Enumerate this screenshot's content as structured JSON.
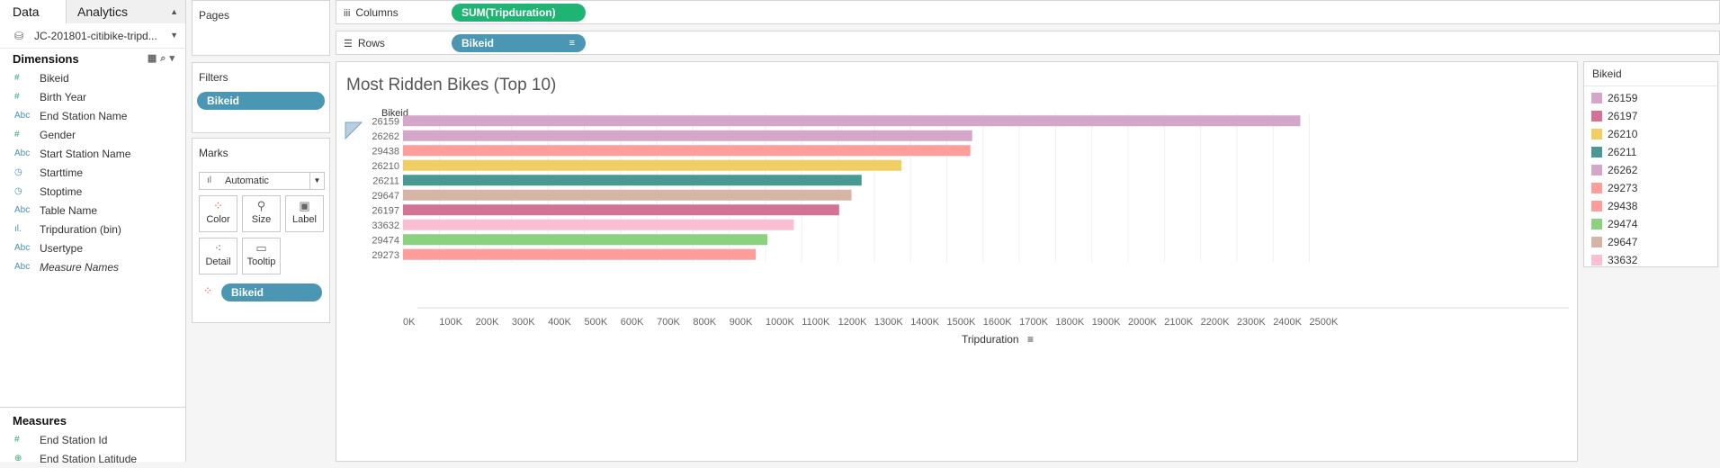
{
  "data_pane": {
    "tabs": [
      "Data",
      "Analytics"
    ],
    "datasource": "JC-201801-citibike-tripd...",
    "dimensions_title": "Dimensions",
    "dimensions": [
      {
        "icon": "#",
        "label": "Bikeid"
      },
      {
        "icon": "#",
        "label": "Birth Year"
      },
      {
        "icon": "Abc",
        "label": "End Station Name"
      },
      {
        "icon": "#",
        "label": "Gender"
      },
      {
        "icon": "Abc",
        "label": "Start Station Name"
      },
      {
        "icon": "◷",
        "label": "Starttime"
      },
      {
        "icon": "◷",
        "label": "Stoptime"
      },
      {
        "icon": "Abc",
        "label": "Table Name"
      },
      {
        "icon": "ıl.",
        "label": "Tripduration (bin)"
      },
      {
        "icon": "Abc",
        "label": "Usertype"
      },
      {
        "icon": "Abc",
        "label": "Measure Names"
      }
    ],
    "measures_title": "Measures",
    "measures": [
      {
        "icon": "#",
        "label": "End Station Id"
      },
      {
        "icon": "⊕",
        "label": "End Station Latitude"
      }
    ]
  },
  "cards": {
    "pages_title": "Pages",
    "filters_title": "Filters",
    "filter_pill": "Bikeid",
    "marks_title": "Marks",
    "mark_type": "Automatic",
    "mark_buttons": [
      "Color",
      "Size",
      "Label",
      "Detail",
      "Tooltip"
    ],
    "color_pill": "Bikeid"
  },
  "shelves": {
    "columns_label": "Columns",
    "columns_pill": "SUM(Tripduration)",
    "rows_label": "Rows",
    "rows_pill": "Bikeid"
  },
  "chart_data": {
    "type": "bar",
    "orientation": "horizontal",
    "title": "Most Ridden Bikes (Top 10)",
    "row_header": "Bikeid",
    "xlabel": "Tripduration",
    "xlim": [
      0,
      2600000
    ],
    "ticks": [
      "0K",
      "100K",
      "200K",
      "300K",
      "400K",
      "500K",
      "600K",
      "700K",
      "800K",
      "900K",
      "1000K",
      "1100K",
      "1200K",
      "1300K",
      "1400K",
      "1500K",
      "1600K",
      "1700K",
      "1800K",
      "1900K",
      "2000K",
      "2100K",
      "2200K",
      "2300K",
      "2400K",
      "2500K"
    ],
    "categories": [
      "26159",
      "26262",
      "29438",
      "26210",
      "26211",
      "29647",
      "26197",
      "33632",
      "29474",
      "29273"
    ],
    "values": [
      2475000,
      1570000,
      1565000,
      1375000,
      1265000,
      1237000,
      1203000,
      1078000,
      1005000,
      973000
    ],
    "colors": [
      "#d4a6c8",
      "#d4a6c8",
      "#ff9d9a",
      "#f1ce63",
      "#499894",
      "#d7b5a6",
      "#d37295",
      "#fabfd2",
      "#8cd17d",
      "#ff9d9a"
    ]
  },
  "legend": {
    "title": "Bikeid",
    "items": [
      {
        "label": "26159",
        "color": "#d4a6c8"
      },
      {
        "label": "26197",
        "color": "#d37295"
      },
      {
        "label": "26210",
        "color": "#f1ce63"
      },
      {
        "label": "26211",
        "color": "#499894"
      },
      {
        "label": "26262",
        "color": "#d4a6c8"
      },
      {
        "label": "29273",
        "color": "#ff9d9a"
      },
      {
        "label": "29438",
        "color": "#ff9d9a"
      },
      {
        "label": "29474",
        "color": "#8cd17d"
      },
      {
        "label": "29647",
        "color": "#d7b5a6"
      },
      {
        "label": "33632",
        "color": "#fabfd2"
      }
    ]
  }
}
